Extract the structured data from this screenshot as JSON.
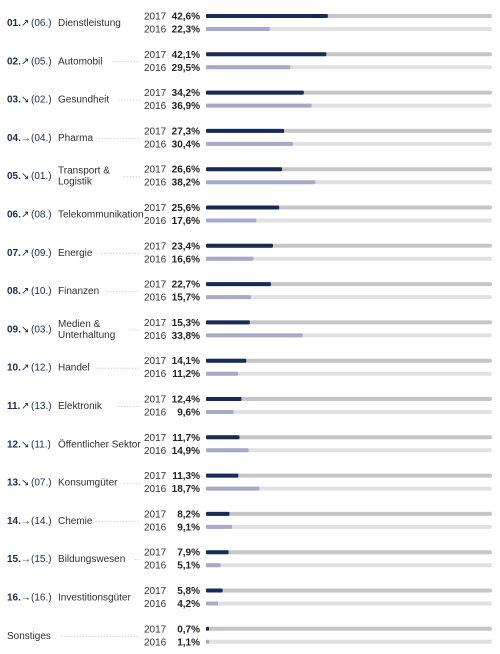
{
  "chart_data": {
    "type": "bar",
    "orientation": "horizontal",
    "xlim": [
      0,
      100
    ],
    "series": [
      {
        "name": "2017",
        "color": "#172b55"
      },
      {
        "name": "2016",
        "color": "#a6aac9"
      }
    ],
    "track_colors": {
      "2017": "#c6c6c6",
      "2016": "#e1e1e1"
    },
    "rows": [
      {
        "rank": "01.",
        "trend": "↗",
        "prev": "(06.)",
        "lines": [
          "Dienstleistung"
        ],
        "y2017": 42.6,
        "y2016": 22.3,
        "label2017": "42,6%",
        "label2016": "22,3%"
      },
      {
        "rank": "02.",
        "trend": "↗",
        "prev": "(05.)",
        "lines": [
          "Automobil"
        ],
        "y2017": 42.1,
        "y2016": 29.5,
        "label2017": "42,1%",
        "label2016": "29,5%"
      },
      {
        "rank": "03.",
        "trend": "↘",
        "prev": "(02.)",
        "lines": [
          "Gesundheit"
        ],
        "y2017": 34.2,
        "y2016": 36.9,
        "label2017": "34,2%",
        "label2016": "36,9%"
      },
      {
        "rank": "04.",
        "trend": "→",
        "prev": "(04.)",
        "lines": [
          "Pharma"
        ],
        "y2017": 27.3,
        "y2016": 30.4,
        "label2017": "27,3%",
        "label2016": "30,4%"
      },
      {
        "rank": "05.",
        "trend": "↘",
        "prev": "(01.)",
        "lines": [
          "Transport &",
          "Logistik"
        ],
        "y2017": 26.6,
        "y2016": 38.2,
        "label2017": "26,6%",
        "label2016": "38,2%"
      },
      {
        "rank": "06.",
        "trend": "↗",
        "prev": "(08.)",
        "lines": [
          "Telekommunikation"
        ],
        "y2017": 25.6,
        "y2016": 17.6,
        "label2017": "25,6%",
        "label2016": "17,6%"
      },
      {
        "rank": "07.",
        "trend": "↗",
        "prev": "(09.)",
        "lines": [
          "Energie"
        ],
        "y2017": 23.4,
        "y2016": 16.6,
        "label2017": "23,4%",
        "label2016": "16,6%"
      },
      {
        "rank": "08.",
        "trend": "↗",
        "prev": "(10.)",
        "lines": [
          "Finanzen"
        ],
        "y2017": 22.7,
        "y2016": 15.7,
        "label2017": "22,7%",
        "label2016": "15,7%"
      },
      {
        "rank": "09.",
        "trend": "↘",
        "prev": "(03.)",
        "lines": [
          "Medien &",
          "Unterhaltung"
        ],
        "y2017": 15.3,
        "y2016": 33.8,
        "label2017": "15,3%",
        "label2016": "33,8%"
      },
      {
        "rank": "10.",
        "trend": "↗",
        "prev": "(12.)",
        "lines": [
          "Handel"
        ],
        "y2017": 14.1,
        "y2016": 11.2,
        "label2017": "14,1%",
        "label2016": "11,2%"
      },
      {
        "rank": "11.",
        "trend": "↗",
        "prev": "(13.)",
        "lines": [
          "Elektronik"
        ],
        "y2017": 12.4,
        "y2016": 9.6,
        "label2017": "12,4%",
        "label2016": "9,6%"
      },
      {
        "rank": "12.",
        "trend": "↘",
        "prev": "(11.)",
        "lines": [
          "Öffentlicher Sektor"
        ],
        "y2017": 11.7,
        "y2016": 14.9,
        "label2017": "11,7%",
        "label2016": "14,9%"
      },
      {
        "rank": "13.",
        "trend": "↘",
        "prev": "(07.)",
        "lines": [
          "Konsumgüter"
        ],
        "y2017": 11.3,
        "y2016": 18.7,
        "label2017": "11,3%",
        "label2016": "18,7%"
      },
      {
        "rank": "14.",
        "trend": "→",
        "prev": "(14.)",
        "lines": [
          "Chemie"
        ],
        "y2017": 8.2,
        "y2016": 9.1,
        "label2017": "8,2%",
        "label2016": "9,1%"
      },
      {
        "rank": "15.",
        "trend": "→",
        "prev": "(15.)",
        "lines": [
          "Bildungswesen"
        ],
        "y2017": 7.9,
        "y2016": 5.1,
        "label2017": "7,9%",
        "label2016": "5,1%"
      },
      {
        "rank": "16.",
        "trend": "→",
        "prev": "(16.)",
        "lines": [
          "Investitionsgüter"
        ],
        "y2017": 5.8,
        "y2016": 4.2,
        "label2017": "5,8%",
        "label2016": "4,2%"
      },
      {
        "rank": "",
        "trend": "",
        "prev": "",
        "lines": [
          "Sonstiges"
        ],
        "y2017": 0.7,
        "y2016": 1.1,
        "label2017": "0,7%",
        "label2016": "1,1%"
      }
    ]
  }
}
